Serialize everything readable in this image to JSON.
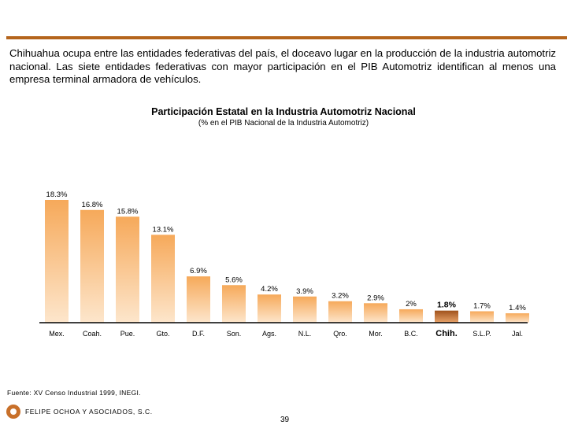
{
  "intro_text": "Chihuahua ocupa entre las entidades federativas del país, el doceavo lugar en la producción de la industria automotriz nacional. Las siete entidades federativas con mayor participación en el PIB Automotriz identifican al menos una empresa terminal armadora de vehículos.",
  "chart_data": {
    "type": "bar",
    "title": "Participación Estatal en la Industria Automotriz Nacional",
    "subtitle": "(% en el PIB Nacional de la Industria Automotriz)",
    "categories": [
      "Mex.",
      "Coah.",
      "Pue.",
      "Gto.",
      "D.F.",
      "Son.",
      "Ags.",
      "N.L.",
      "Qro.",
      "Mor.",
      "B.C.",
      "Chih.",
      "S.L.P.",
      "Jal."
    ],
    "values": [
      18.3,
      16.8,
      15.8,
      13.1,
      6.9,
      5.6,
      4.2,
      3.9,
      3.2,
      2.9,
      2.0,
      1.8,
      1.7,
      1.4
    ],
    "labels": [
      "18.3%",
      "16.8%",
      "15.8%",
      "13.1%",
      "6.9%",
      "5.6%",
      "4.2%",
      "3.9%",
      "3.2%",
      "2.9%",
      "2%",
      "1.8%",
      "1.7%",
      "1.4%"
    ],
    "highlight_category": "Chih.",
    "ylim": [
      0,
      18.3
    ],
    "xlabel": "",
    "ylabel": "",
    "grid": false,
    "colors": {
      "bar_top": "#f6a95a",
      "bar_bottom": "#fde6cc",
      "highlight_top": "#a0521c",
      "highlight_bottom": "#e8a36a",
      "axis": "#000000"
    }
  },
  "footer": {
    "source": "Fuente: XV Censo Industrial 1999, INEGI.",
    "company": "FELIPE OCHOA Y ASOCIADOS, S.C.",
    "page_number": "39"
  },
  "colors": {
    "accent_rule": "#b5651d",
    "logo": "#c8702a"
  }
}
